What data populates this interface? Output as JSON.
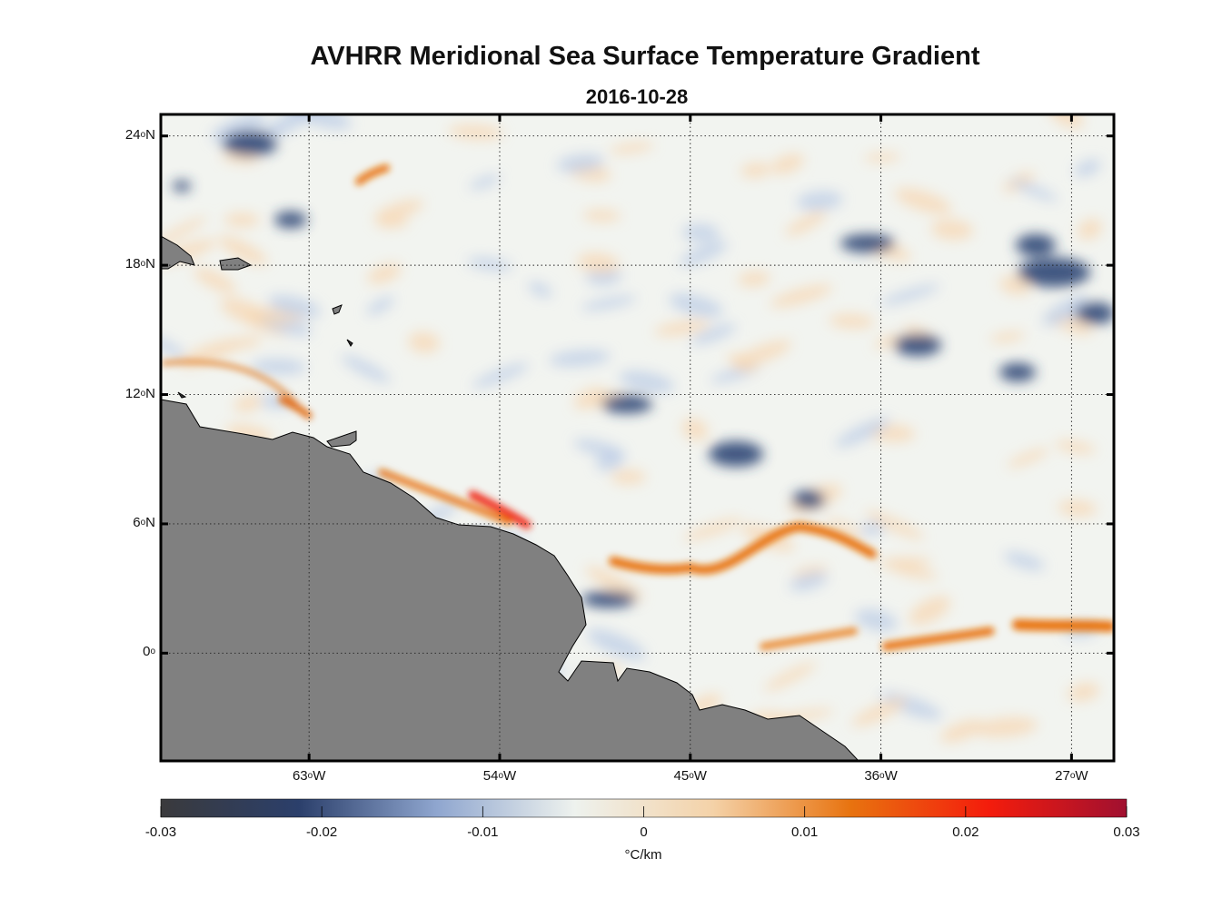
{
  "title": "AVHRR Meridional Sea Surface Temperature Gradient",
  "subtitle": "2016-10-28",
  "map": {
    "projection": "equirectangular",
    "lon_range": [
      -70,
      -25
    ],
    "lat_range": [
      -5,
      25
    ],
    "lat_ticks": [
      {
        "value": 24,
        "text": "24",
        "hemi": "N"
      },
      {
        "value": 18,
        "text": "18",
        "hemi": "N"
      },
      {
        "value": 12,
        "text": "12",
        "hemi": "N"
      },
      {
        "value": 6,
        "text": "6",
        "hemi": "N"
      },
      {
        "value": 0,
        "text": "0",
        "hemi": ""
      }
    ],
    "lon_ticks": [
      {
        "value": -63,
        "text": "63",
        "hemi": "W"
      },
      {
        "value": -54,
        "text": "54",
        "hemi": "W"
      },
      {
        "value": -45,
        "text": "45",
        "hemi": "W"
      },
      {
        "value": -36,
        "text": "36",
        "hemi": "W"
      },
      {
        "value": -27,
        "text": "27",
        "hemi": "W"
      }
    ],
    "grid": "dotted",
    "land_color": "#808080",
    "degree_symbol": "o"
  },
  "colorbar": {
    "min": -0.03,
    "max": 0.03,
    "tick_labels": [
      "-0.03",
      "-0.02",
      "-0.01",
      "0",
      "0.01",
      "0.02",
      "0.03"
    ],
    "units": "°C/km",
    "colors": [
      "#3a3a3c",
      "#2b3f6b",
      "#8fa6cf",
      "#eef2ee",
      "#f4d2a8",
      "#e8730f",
      "#f41c0c",
      "#a01030"
    ]
  }
}
